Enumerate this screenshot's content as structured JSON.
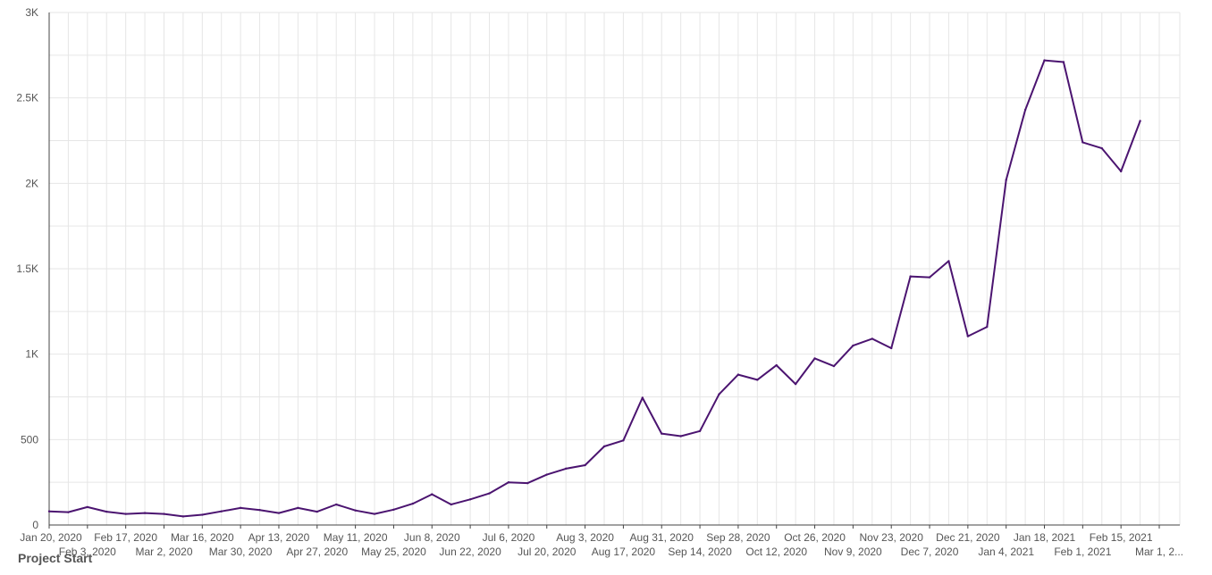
{
  "chart_data": {
    "type": "line",
    "xlabel": "Project Start",
    "ylabel": "",
    "ylim": [
      0,
      3000
    ],
    "y_ticks": [
      0,
      500,
      1000,
      1500,
      2000,
      2500,
      3000
    ],
    "y_tick_labels": [
      "0",
      "500",
      "1K",
      "1.5K",
      "2K",
      "2.5K",
      "3K"
    ],
    "x_ticks": [
      "2020-01-20",
      "2020-02-03",
      "2020-02-17",
      "2020-03-02",
      "2020-03-16",
      "2020-03-30",
      "2020-04-13",
      "2020-04-27",
      "2020-05-11",
      "2020-05-25",
      "2020-06-08",
      "2020-06-22",
      "2020-07-06",
      "2020-07-20",
      "2020-08-03",
      "2020-08-17",
      "2020-08-31",
      "2020-09-14",
      "2020-09-28",
      "2020-10-12",
      "2020-10-26",
      "2020-11-09",
      "2020-11-23",
      "2020-12-07",
      "2020-12-21",
      "2021-01-04",
      "2021-01-18",
      "2021-02-01",
      "2021-02-15",
      "2021-03-01"
    ],
    "x_tick_labels": [
      "Jan 20, 2020",
      "Feb 3, 2020",
      "Feb 17, 2020",
      "Mar 2, 2020",
      "Mar 16, 2020",
      "Mar 30, 2020",
      "Apr 13, 2020",
      "Apr 27, 2020",
      "May 11, 2020",
      "May 25, 2020",
      "Jun 8, 2020",
      "Jun 22, 2020",
      "Jul 6, 2020",
      "Jul 20, 2020",
      "Aug 3, 2020",
      "Aug 17, 2020",
      "Aug 31, 2020",
      "Sep 14, 2020",
      "Sep 28, 2020",
      "Oct 12, 2020",
      "Oct 26, 2020",
      "Nov 9, 2020",
      "Nov 23, 2020",
      "Dec 7, 2020",
      "Dec 21, 2020",
      "Jan 4, 2021",
      "Jan 18, 2021",
      "Feb 1, 2021",
      "Feb 15, 2021",
      "Mar 1, 2..."
    ],
    "grid": true,
    "legend": "none",
    "series": [
      {
        "color": "#4b1470",
        "x": [
          "2020-01-20",
          "2020-01-27",
          "2020-02-03",
          "2020-02-10",
          "2020-02-17",
          "2020-02-24",
          "2020-03-02",
          "2020-03-09",
          "2020-03-16",
          "2020-03-23",
          "2020-03-30",
          "2020-04-06",
          "2020-04-13",
          "2020-04-20",
          "2020-04-27",
          "2020-05-04",
          "2020-05-11",
          "2020-05-18",
          "2020-05-25",
          "2020-06-01",
          "2020-06-08",
          "2020-06-15",
          "2020-06-22",
          "2020-06-29",
          "2020-07-06",
          "2020-07-13",
          "2020-07-20",
          "2020-07-27",
          "2020-08-03",
          "2020-08-10",
          "2020-08-17",
          "2020-08-24",
          "2020-08-31",
          "2020-09-07",
          "2020-09-14",
          "2020-09-21",
          "2020-09-28",
          "2020-10-05",
          "2020-10-12",
          "2020-10-19",
          "2020-10-26",
          "2020-11-02",
          "2020-11-09",
          "2020-11-16",
          "2020-11-23",
          "2020-11-30",
          "2020-12-07",
          "2020-12-14",
          "2020-12-21",
          "2020-12-28",
          "2021-01-04",
          "2021-01-11",
          "2021-01-18",
          "2021-01-25",
          "2021-02-01",
          "2021-02-08",
          "2021-02-15",
          "2021-02-22"
        ],
        "y": [
          80,
          75,
          105,
          78,
          65,
          70,
          65,
          50,
          60,
          80,
          100,
          88,
          70,
          100,
          78,
          120,
          85,
          65,
          90,
          125,
          180,
          120,
          150,
          185,
          250,
          245,
          295,
          330,
          350,
          460,
          495,
          745,
          535,
          520,
          550,
          765,
          880,
          850,
          935,
          825,
          975,
          930,
          1050,
          1090,
          1035,
          1455,
          1450,
          1545,
          1105,
          1160,
          2020,
          2430,
          2720,
          2710,
          2240,
          2205,
          2070,
          2365
        ]
      }
    ]
  }
}
